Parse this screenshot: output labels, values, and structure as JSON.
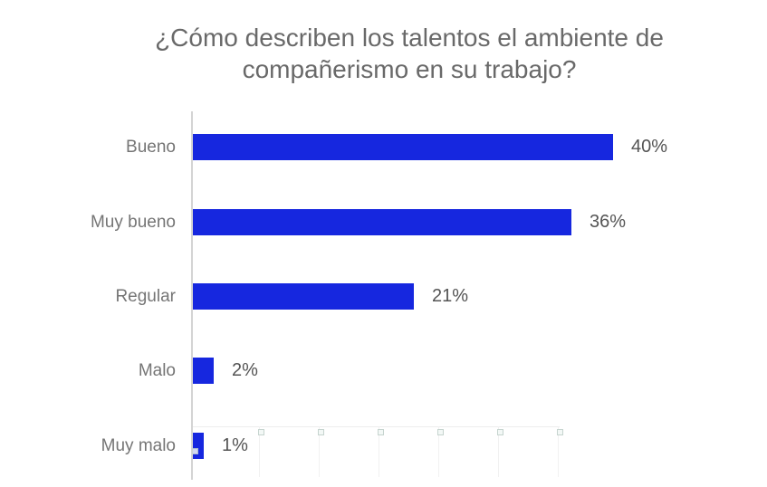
{
  "chart_data": {
    "type": "bar",
    "orientation": "horizontal",
    "title": "¿Cómo describen los talentos el ambiente de compañerismo en su trabajo?",
    "categories": [
      "Bueno",
      "Muy bueno",
      "Regular",
      "Malo",
      "Muy malo"
    ],
    "values": [
      40,
      36,
      21,
      2,
      1
    ],
    "value_labels": [
      "40%",
      "36%",
      "21%",
      "2%",
      "1%"
    ],
    "unit": "percent",
    "xlabel": "",
    "ylabel": "",
    "legend_position": "none",
    "grid": false,
    "x_tick_labels_shown_as": "broken-image placeholders along bottom",
    "xlim": [
      0,
      55
    ]
  },
  "colors": {
    "background": "#ffffff",
    "bar": "#1627df",
    "title_text": "#696969",
    "category_text": "#757575",
    "value_text": "#545454",
    "axis_line": "#d4d4d4",
    "faint_line": "#ededed",
    "faint_gridline": "#f1f1f1",
    "broken_icon_bg": "#f3f8f6",
    "broken_icon_border": "#c6d4cf"
  },
  "decor": {
    "broken_image_tick_count": 6,
    "bar_artifact_icon": "broken-image-icon overlapping lowest bar"
  }
}
